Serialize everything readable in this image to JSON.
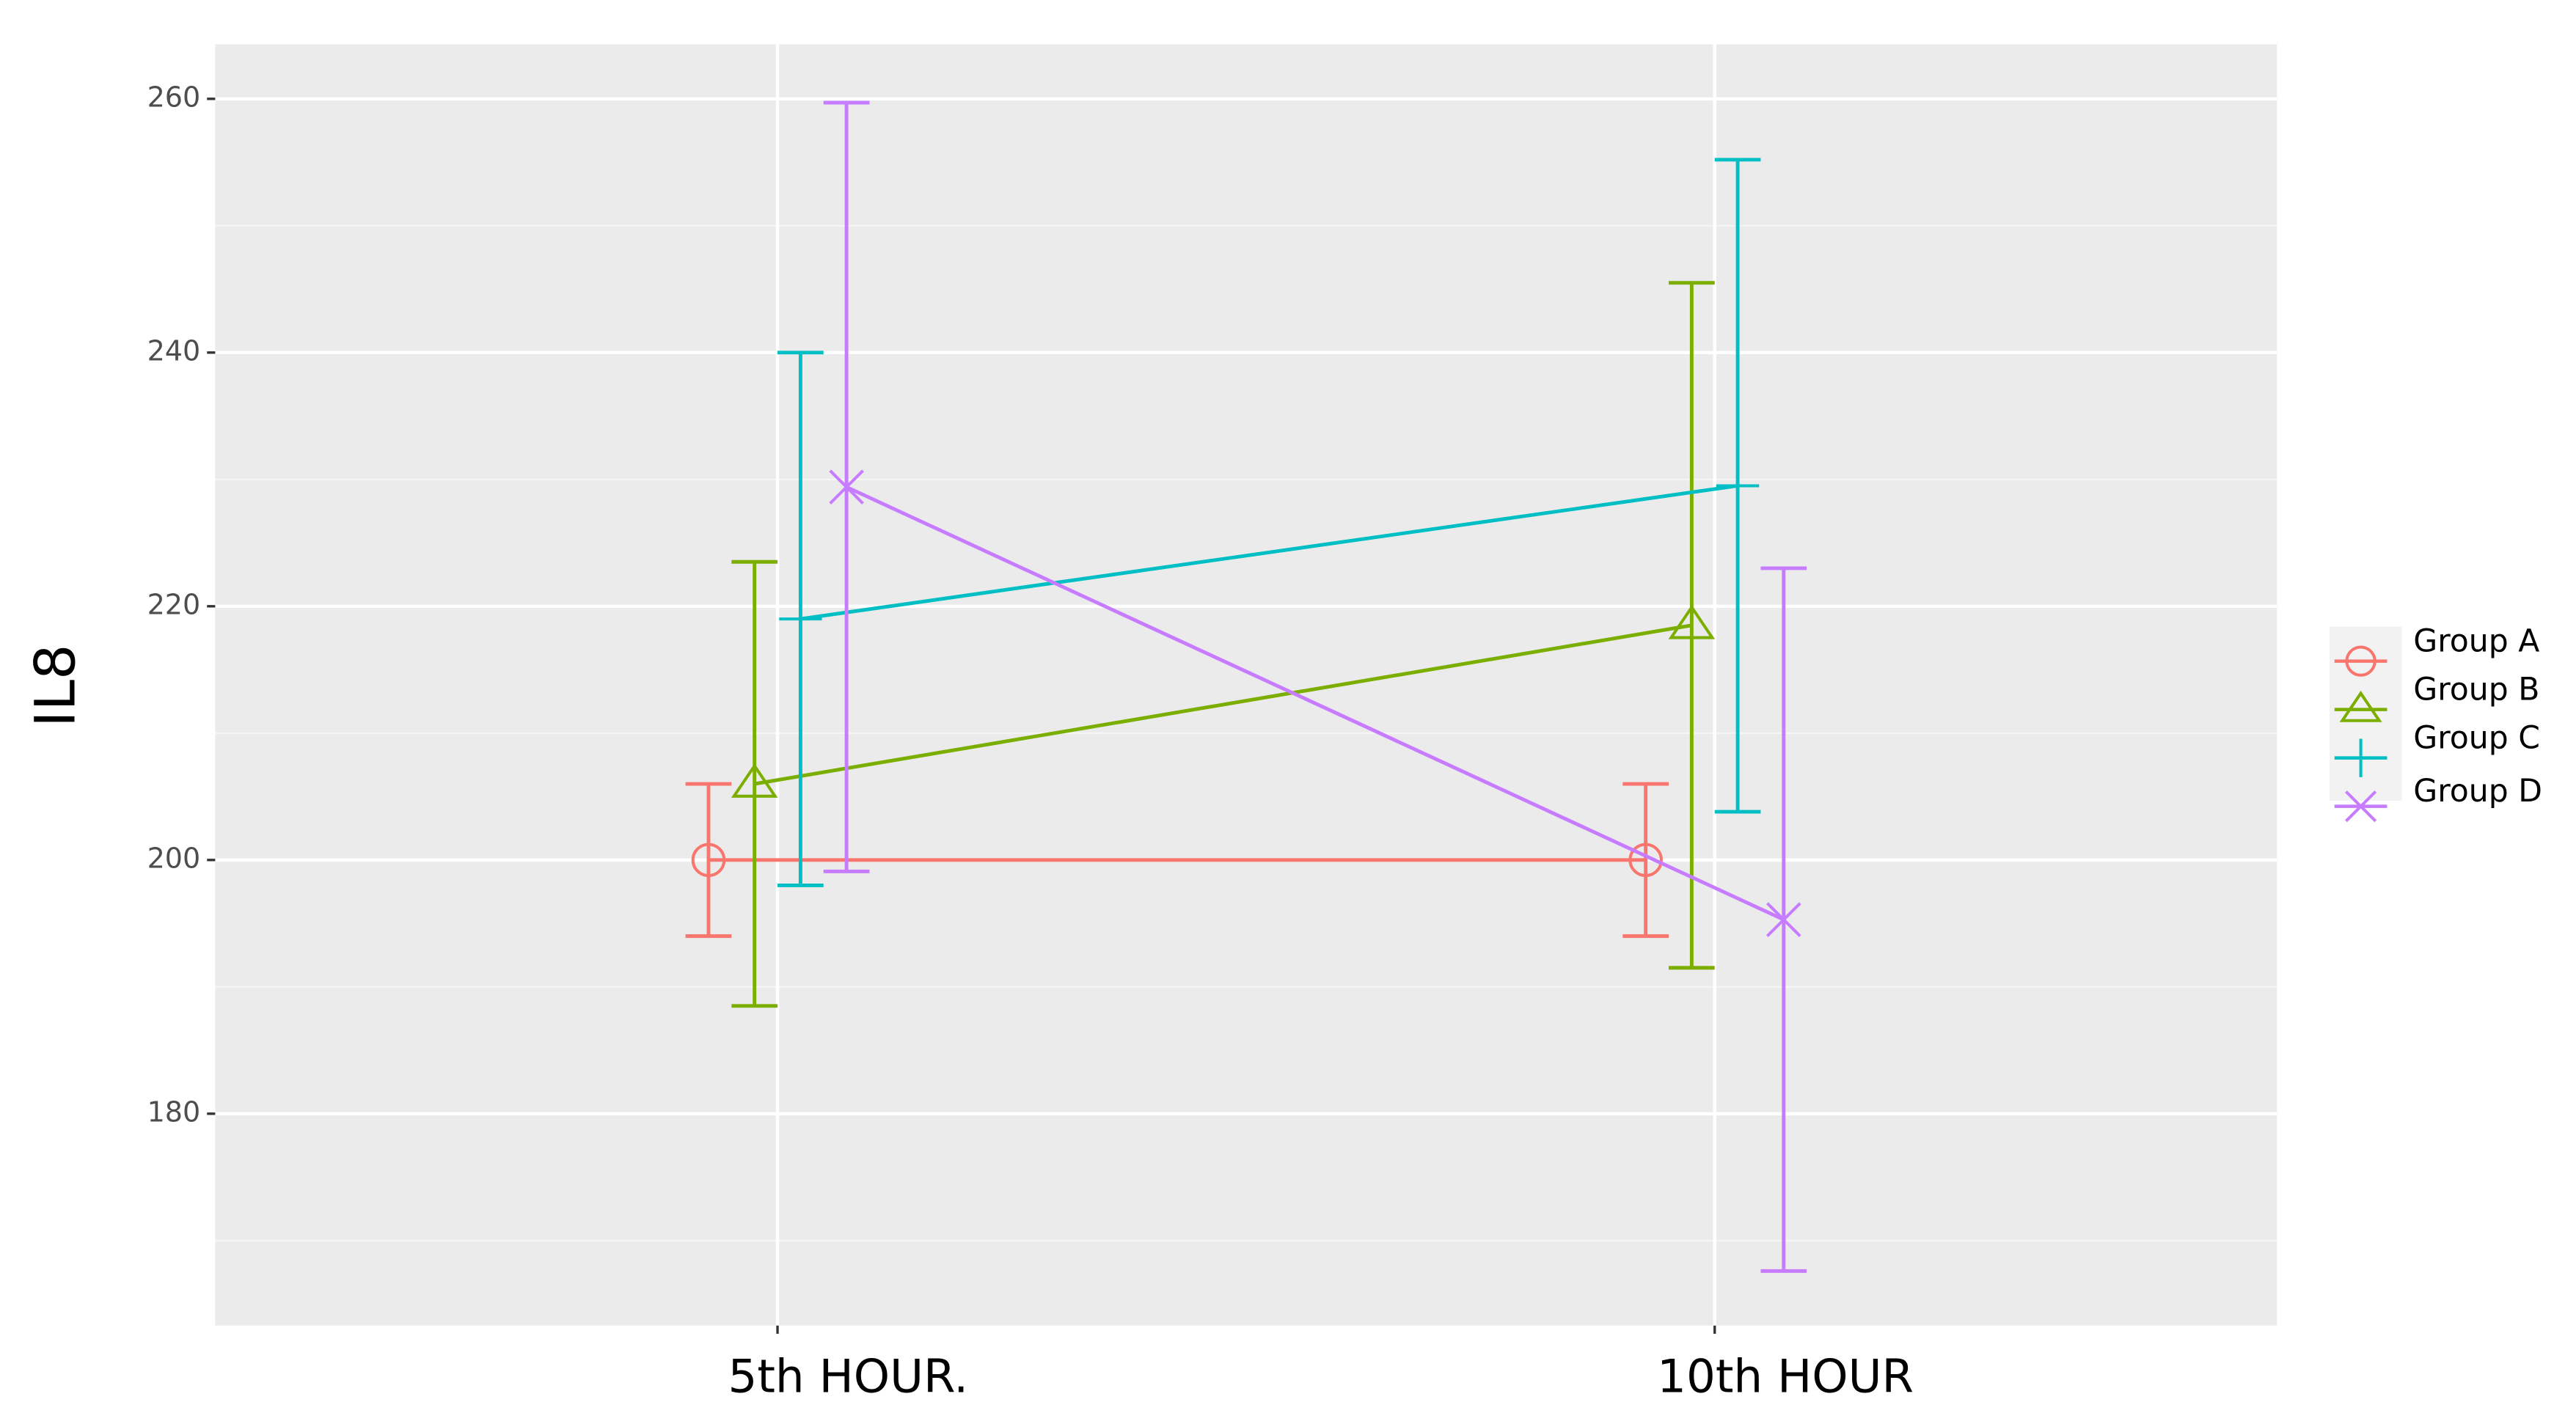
{
  "chart_data": {
    "type": "line",
    "y_label": "IL8",
    "categories": [
      "5th HOUR.",
      "10th HOUR"
    ],
    "ylim": [
      163.3,
      264.3
    ],
    "yticks": [
      180,
      200,
      220,
      240,
      260
    ],
    "minor_yticks": [
      170,
      190,
      210,
      230,
      250
    ],
    "grid": true,
    "legend": "right",
    "series": [
      {
        "name": "Group A",
        "color": "#F8766D",
        "shape": "circle",
        "values": [
          200,
          200
        ],
        "errors": [
          6,
          6
        ]
      },
      {
        "name": "Group B",
        "color": "#7CAE00",
        "shape": "triangle",
        "values": [
          206,
          218.5
        ],
        "errors": [
          17.5,
          27
        ]
      },
      {
        "name": "Group C",
        "color": "#00BFC4",
        "shape": "plus",
        "values": [
          219,
          229.5
        ],
        "errors": [
          21,
          25.7
        ]
      },
      {
        "name": "Group D",
        "color": "#C77CFF",
        "shape": "cross",
        "values": [
          229.4,
          195.3
        ],
        "errors": [
          30.3,
          27.7
        ]
      }
    ]
  }
}
